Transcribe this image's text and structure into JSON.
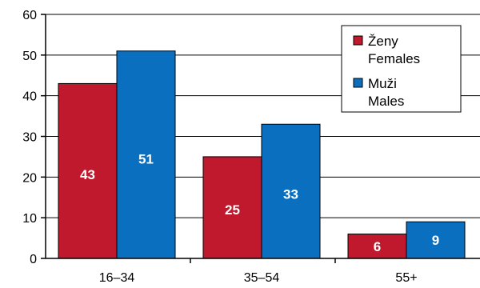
{
  "chart_data": {
    "type": "bar",
    "categories": [
      "16–34",
      "35–54",
      "55+"
    ],
    "series": [
      {
        "name": "Ženy\nFemales",
        "name_lines": [
          "Ženy",
          "Females"
        ],
        "values": [
          43,
          25,
          6
        ],
        "color": "#C0182C"
      },
      {
        "name": "Muži\nMales",
        "name_lines": [
          "Muži",
          "Males"
        ],
        "values": [
          51,
          33,
          9
        ],
        "color": "#0B6FC0"
      }
    ],
    "data_labels": [
      [
        "43",
        "25",
        "6"
      ],
      [
        "51",
        "33",
        "9"
      ]
    ],
    "title": "",
    "xlabel": "",
    "ylabel": "",
    "ylim": [
      0,
      60
    ],
    "yticks": [
      0,
      10,
      20,
      30,
      40,
      50,
      60
    ],
    "grid": "horizontal",
    "legend_position": "top-right"
  }
}
